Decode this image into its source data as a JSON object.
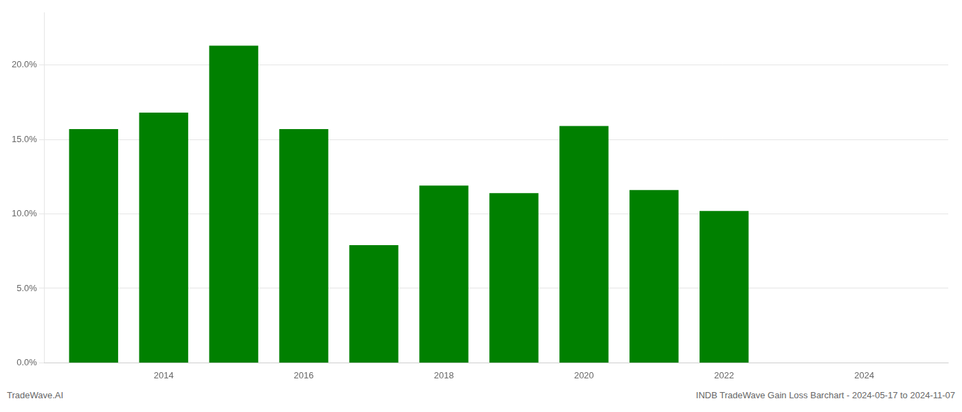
{
  "chart_data": {
    "type": "bar",
    "x": [
      2013,
      2014,
      2015,
      2016,
      2017,
      2018,
      2019,
      2020,
      2021,
      2022
    ],
    "values": [
      0.157,
      0.168,
      0.213,
      0.157,
      0.079,
      0.119,
      0.114,
      0.159,
      0.116,
      0.102
    ],
    "color": "#008000",
    "xlim": [
      2012.3,
      2025.2
    ],
    "xticks": [
      2014,
      2016,
      2018,
      2020,
      2022,
      2024
    ],
    "ylim": [
      0,
      0.235
    ],
    "yticks": [
      {
        "value": 0.0,
        "label": "0.0%"
      },
      {
        "value": 0.05,
        "label": "5.0%"
      },
      {
        "value": 0.1,
        "label": "10.0%"
      },
      {
        "value": 0.15,
        "label": "15.0%"
      },
      {
        "value": 0.2,
        "label": "20.0%"
      }
    ],
    "grid": "y",
    "annotations": [
      "TradeWave.AI",
      "INDB TradeWave Gain Loss Barchart - 2024-05-17 to 2024-11-07"
    ]
  }
}
